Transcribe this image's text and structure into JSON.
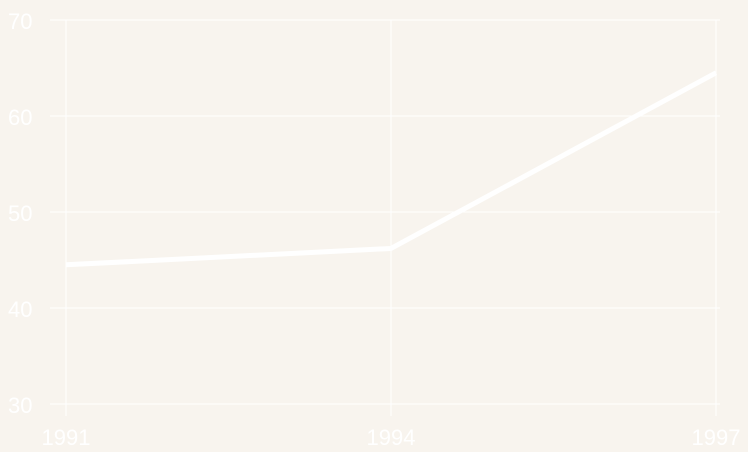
{
  "chart_data": {
    "type": "line",
    "x": [
      1991,
      1994,
      1997
    ],
    "series": [
      {
        "color": "#ffffff",
        "values": [
          44.5,
          46.2,
          64.5
        ]
      }
    ],
    "xlim": [
      1991,
      1997
    ],
    "xticks": [
      1991,
      1994,
      1997
    ],
    "ylim": [
      30,
      70
    ],
    "yticks": [
      30,
      40,
      50,
      60,
      70
    ],
    "grid": true
  }
}
